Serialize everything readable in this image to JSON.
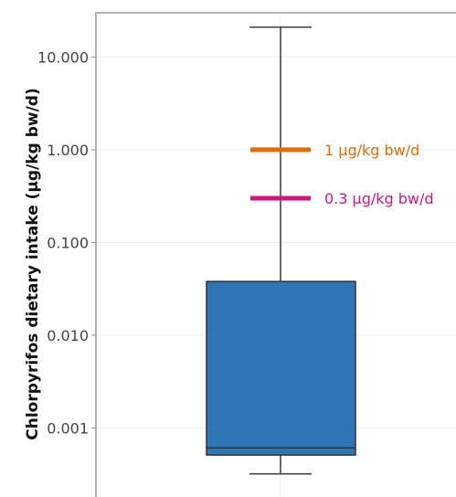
{
  "chart_data": {
    "type": "box",
    "ylabel": "Chlorpyrifos dietary intake (µg/kg bw/d)",
    "y_scale": "log",
    "ylim": [
      0.00018,
      30
    ],
    "y_ticks": [
      {
        "value": 10,
        "label": "10.000"
      },
      {
        "value": 1,
        "label": "1.000"
      },
      {
        "value": 0.1,
        "label": "0.100"
      },
      {
        "value": 0.01,
        "label": "0.010"
      },
      {
        "value": 0.001,
        "label": "0.001"
      }
    ],
    "box": {
      "whisker_low": 0.00032,
      "q1": 0.00051,
      "median": 0.00061,
      "q3": 0.038,
      "whisker_high": 21,
      "color": "#2e75b6"
    },
    "reference_lines": [
      {
        "value": 1,
        "label": "1 µg/kg bw/d",
        "color": "#e36c09"
      },
      {
        "value": 0.3,
        "label": "0.3 µg/kg bw/d",
        "color": "#d6147a"
      }
    ],
    "grid": true
  }
}
